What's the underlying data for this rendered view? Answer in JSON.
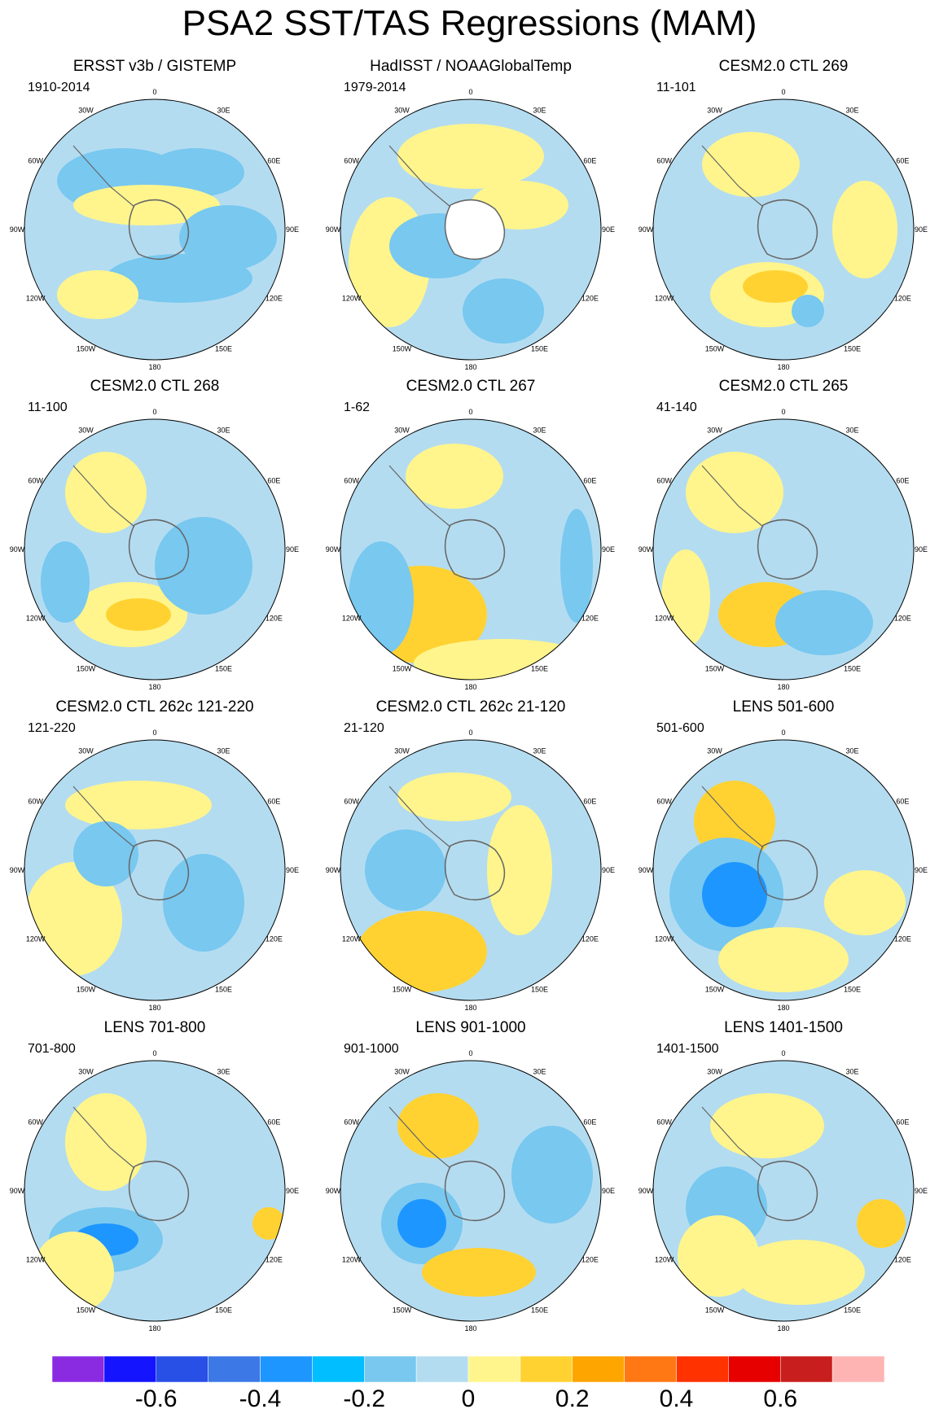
{
  "title": "PSA2 SST/TAS Regressions (MAM)",
  "longitude_ticks": [
    "0",
    "30E",
    "60E",
    "90E",
    "120E",
    "150E",
    "180",
    "150W",
    "120W",
    "90W",
    "60W",
    "30W"
  ],
  "panels": [
    {
      "title": "ERSST v3b / GISTEMP",
      "period": "1910-2014"
    },
    {
      "title": "HadISST / NOAAGlobalTemp",
      "period": "1979-2014"
    },
    {
      "title": "CESM2.0 CTL 269",
      "period": "11-101"
    },
    {
      "title": "CESM2.0 CTL 268",
      "period": "11-100"
    },
    {
      "title": "CESM2.0 CTL 267",
      "period": "1-62"
    },
    {
      "title": "CESM2.0 CTL 265",
      "period": "41-140"
    },
    {
      "title": "CESM2.0 CTL 262c 121-220",
      "period": "121-220"
    },
    {
      "title": "CESM2.0 CTL 262c 21-120",
      "period": "21-120"
    },
    {
      "title": "LENS 501-600",
      "period": "501-600"
    },
    {
      "title": "LENS 701-800",
      "period": "701-800"
    },
    {
      "title": "LENS 901-1000",
      "period": "901-1000"
    },
    {
      "title": "LENS 1401-1500",
      "period": "1401-1500"
    }
  ],
  "colorbar": {
    "colors": [
      "#8a2be2",
      "#1414ff",
      "#2850e6",
      "#3c78e6",
      "#1e96ff",
      "#00beff",
      "#78c8f0",
      "#b4dcf0",
      "#fff58c",
      "#ffd232",
      "#ffa500",
      "#ff7814",
      "#ff3200",
      "#e60000",
      "#c81e1e",
      "#ffb4b4"
    ],
    "labels": [
      "-0.6",
      "-0.4",
      "-0.2",
      "0",
      "0.2",
      "0.4",
      "0.6"
    ]
  },
  "colors": {
    "neutral_negative": "#b4dcf0",
    "neutral_positive": "#fff58c",
    "land": "#ffffff",
    "coast": "#666666"
  }
}
